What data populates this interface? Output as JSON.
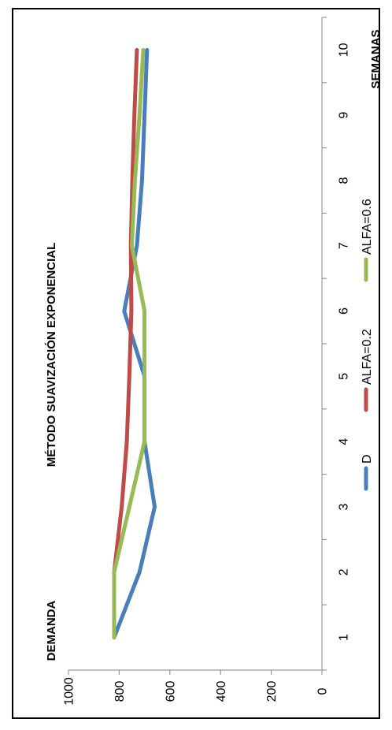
{
  "chart_data": {
    "type": "line",
    "title": "MÉTODO SUAVIZACIÓN EXPONENCIAL",
    "xlabel": "SEMANAS",
    "ylabel": "DEMANDA",
    "ylim": [
      0,
      1000
    ],
    "y_ticks": [
      "0",
      "200",
      "400",
      "600",
      "800",
      "1000"
    ],
    "x": [
      "1",
      "2",
      "3",
      "4",
      "5",
      "6",
      "7",
      "8",
      "9",
      "10"
    ],
    "series": [
      {
        "name": "D",
        "color": "#4A7EBB",
        "values": [
          820,
          720,
          660,
          700,
          700,
          780,
          730,
          710,
          700,
          690
        ]
      },
      {
        "name": "ALFA=0.2",
        "color": "#BE4B48",
        "values": [
          820,
          820,
          790,
          770,
          760,
          752,
          754,
          748,
          740,
          730
        ]
      },
      {
        "name": "ALFA=0.6",
        "color": "#98B954",
        "values": [
          820,
          820,
          760,
          700,
          700,
          700,
          750,
          738,
          720,
          705
        ]
      }
    ],
    "grid": false,
    "legend_position": "bottom",
    "orientation": "rotated-90-clockwise"
  }
}
